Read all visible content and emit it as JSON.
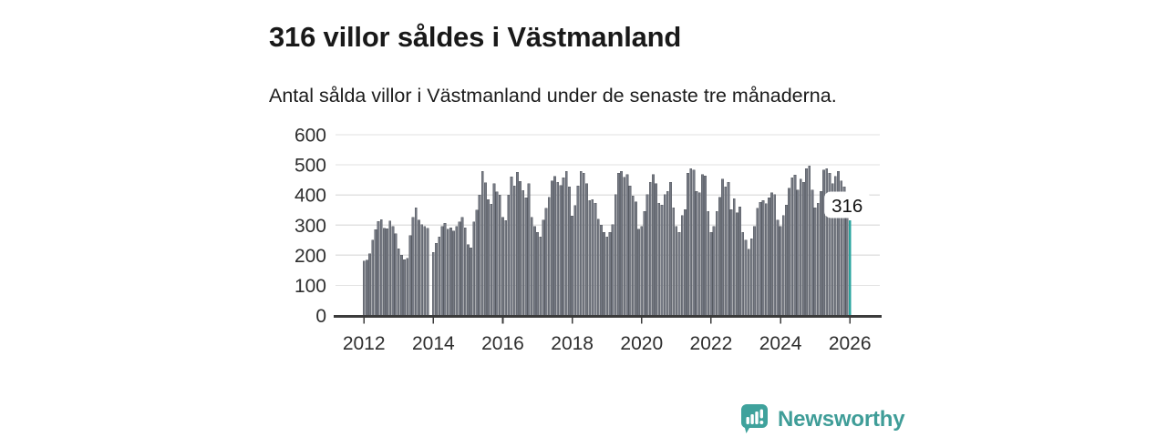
{
  "header": {
    "title": "316 villor såldes i Västmanland",
    "subtitle": "Antal sålda villor i Västmanland under de senaste tre månaderna."
  },
  "chart_data": {
    "type": "bar",
    "title": "316 villor såldes i Västmanland",
    "subtitle": "Antal sålda villor i Västmanland under de senaste tre månaderna.",
    "x_start": "2012-01",
    "x_frequency": "monthly",
    "xlabel": "",
    "ylabel": "",
    "ylim": [
      0,
      600
    ],
    "yticks": [
      0,
      100,
      200,
      300,
      400,
      500,
      600
    ],
    "xticks": [
      2012,
      2014,
      2016,
      2018,
      2020,
      2022,
      2024,
      2026
    ],
    "grid": "horizontal",
    "legend": "none",
    "values": [
      180,
      183,
      205,
      250,
      285,
      312,
      318,
      290,
      288,
      313,
      295,
      271,
      221,
      201,
      185,
      190,
      266,
      326,
      357,
      316,
      301,
      296,
      290,
      null,
      210,
      240,
      261,
      296,
      306,
      286,
      291,
      281,
      296,
      311,
      326,
      291,
      235,
      225,
      310,
      350,
      400,
      478,
      440,
      385,
      370,
      437,
      410,
      400,
      325,
      315,
      400,
      460,
      430,
      475,
      445,
      415,
      390,
      437,
      326,
      296,
      276,
      261,
      316,
      356,
      392,
      447,
      462,
      442,
      432,
      457,
      478,
      427,
      330,
      365,
      430,
      478,
      473,
      437,
      382,
      384,
      372,
      320,
      300,
      276,
      261,
      276,
      301,
      402,
      473,
      478,
      458,
      468,
      430,
      397,
      377,
      286,
      296,
      346,
      402,
      442,
      468,
      437,
      372,
      367,
      402,
      412,
      442,
      357,
      296,
      276,
      331,
      351,
      473,
      488,
      483,
      412,
      407,
      468,
      463,
      346,
      276,
      296,
      346,
      392,
      452,
      427,
      442,
      351,
      387,
      341,
      361,
      276,
      250,
      220,
      255,
      296,
      356,
      376,
      381,
      371,
      391,
      407,
      402,
      316,
      296,
      331,
      367,
      422,
      457,
      467,
      417,
      452,
      442,
      487,
      497,
      417,
      357,
      372,
      412,
      483,
      488,
      473,
      437,
      462,
      478,
      447,
      427,
      331,
      316
    ],
    "highlight": {
      "index": 168,
      "value": 316,
      "annotation": "316"
    },
    "colors": {
      "bar": "#757983",
      "bar_edge": "#565a61",
      "highlight": "#2aa59f",
      "grid": "#e2e2e2",
      "axis": "#3b3b3b",
      "tick_label": "#2e2e2e",
      "annotation_text": "#111111",
      "annotation_bg": "#ffffff"
    }
  },
  "footer": {
    "brand": "Newsworthy",
    "brand_color": "#3f9d98",
    "logo_icon": "bar-chart-speech-bubble-icon"
  }
}
